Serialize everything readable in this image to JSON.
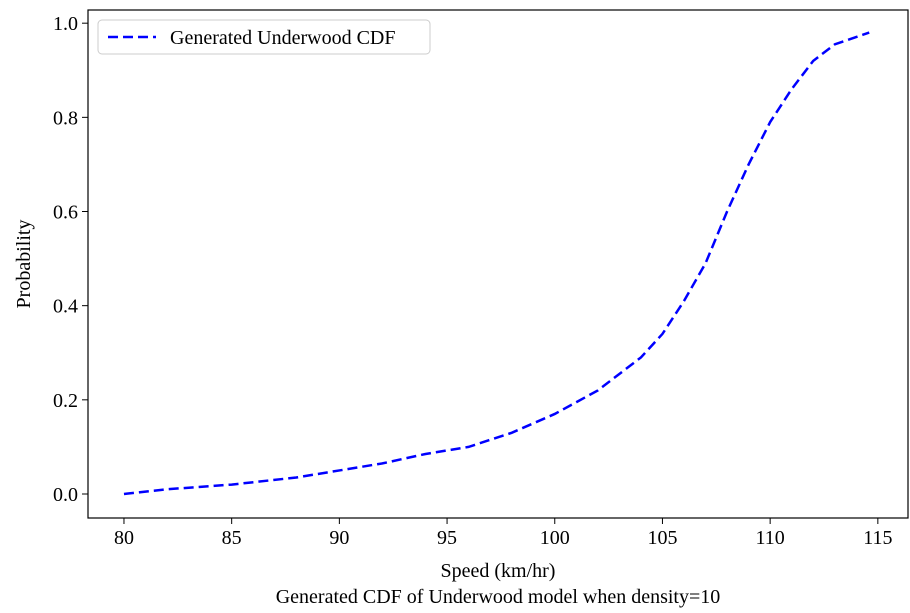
{
  "chart_data": {
    "type": "line",
    "title": "Generated CDF of Underwood model when density=10",
    "xlabel": "Speed (km/hr)",
    "ylabel": "Probability",
    "x": [
      80,
      82,
      85,
      88,
      90,
      92,
      94,
      96,
      98,
      100,
      102,
      104,
      105,
      106,
      107,
      108,
      109,
      110,
      111,
      112,
      113,
      114.6
    ],
    "series": [
      {
        "name": "Generated Underwood CDF",
        "color": "#0000ff",
        "values": [
          0.0,
          0.01,
          0.02,
          0.035,
          0.05,
          0.065,
          0.085,
          0.1,
          0.13,
          0.17,
          0.22,
          0.29,
          0.34,
          0.41,
          0.49,
          0.6,
          0.7,
          0.79,
          0.86,
          0.92,
          0.955,
          0.98
        ]
      }
    ],
    "xlim": [
      78.33,
      116.4
    ],
    "ylim": [
      -0.051,
      1.028
    ],
    "xticks": [
      80,
      85,
      90,
      95,
      100,
      105,
      110,
      115
    ],
    "yticks": [
      {
        "value": 0,
        "label": "0.0"
      },
      {
        "value": 0.2,
        "label": "0.2"
      },
      {
        "value": 0.4,
        "label": "0.4"
      },
      {
        "value": 0.6,
        "label": "0.6"
      },
      {
        "value": 0.8,
        "label": "0.8"
      },
      {
        "value": 1,
        "label": "1.0"
      }
    ],
    "grid": false,
    "legend": "upper-left",
    "line_style": "dashed"
  }
}
